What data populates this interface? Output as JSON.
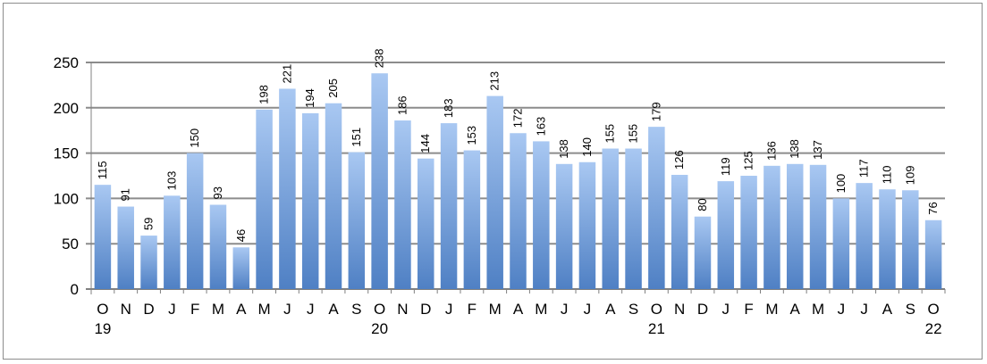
{
  "chart_data": {
    "type": "bar",
    "categories": [
      "O",
      "N",
      "D",
      "J",
      "F",
      "M",
      "A",
      "M",
      "J",
      "J",
      "A",
      "S",
      "O",
      "N",
      "D",
      "J",
      "F",
      "M",
      "A",
      "M",
      "J",
      "J",
      "A",
      "S",
      "O",
      "N",
      "D",
      "J",
      "F",
      "M",
      "A",
      "M",
      "J",
      "J",
      "A",
      "S",
      "O"
    ],
    "values": [
      115,
      91,
      59,
      103,
      150,
      93,
      46,
      198,
      221,
      194,
      205,
      151,
      238,
      186,
      144,
      183,
      153,
      213,
      172,
      163,
      138,
      140,
      155,
      155,
      179,
      126,
      80,
      119,
      125,
      136,
      138,
      137,
      100,
      117,
      110,
      109,
      76
    ],
    "year_labels": [
      {
        "index": 0,
        "label": "19"
      },
      {
        "index": 12,
        "label": "20"
      },
      {
        "index": 24,
        "label": "21"
      },
      {
        "index": 36,
        "label": "22"
      }
    ],
    "ylim": [
      0,
      250
    ],
    "yticks": [
      0,
      50,
      100,
      150,
      200,
      250
    ],
    "grid": true,
    "legend": "none",
    "title": "",
    "xlabel": "",
    "ylabel": "",
    "colors": {
      "bar_top": "#a9c8f2",
      "bar_bottom": "#4f80c4",
      "grid": "#8c8c8c",
      "axis": "#808080"
    }
  }
}
